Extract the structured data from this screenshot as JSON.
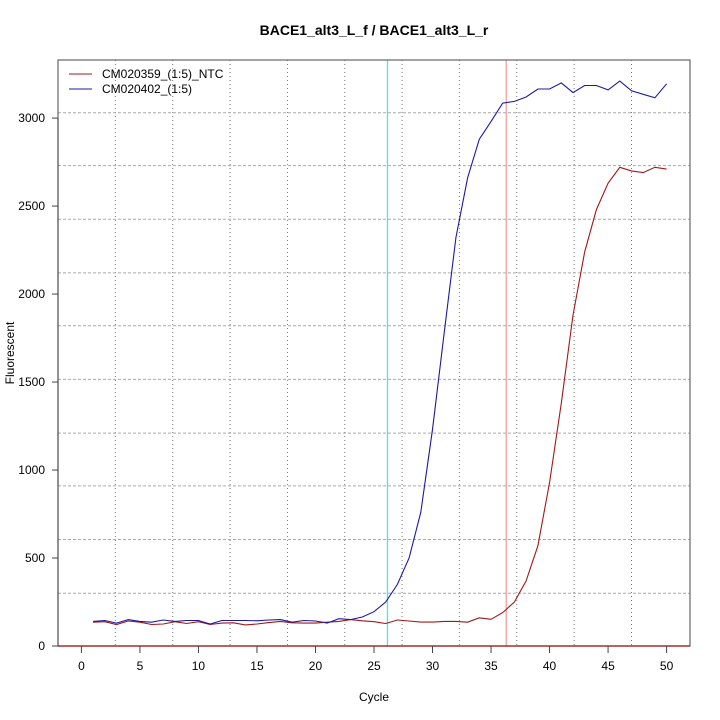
{
  "chart_data": {
    "type": "line",
    "title": "BACE1_alt3_L_f / BACE1_alt3_L_r",
    "xlabel": "Cycle",
    "ylabel": "Fluorescent",
    "xlim": [
      -2,
      52
    ],
    "ylim": [
      0,
      3330
    ],
    "xticks": [
      0,
      5,
      10,
      15,
      20,
      25,
      30,
      35,
      40,
      45,
      50
    ],
    "yticks": [
      0,
      500,
      1000,
      1500,
      2000,
      2500,
      3000
    ],
    "grid": true,
    "grid_x": [
      2.9,
      7.8,
      12.7,
      17.6,
      22.5,
      27.4,
      32.3,
      37.2,
      42.1,
      47.0
    ],
    "grid_y": [
      300,
      605,
      910,
      1210,
      1515,
      1820,
      2120,
      2425,
      2730,
      3030
    ],
    "legend_position": "top-left",
    "vertical_markers": [
      {
        "x": 26.15,
        "color": "#40e8f0"
      },
      {
        "x": 36.3,
        "color": "#f0a0a0"
      }
    ],
    "series": [
      {
        "name": "CM020359_(1:5)_NTC",
        "color": "#a01818",
        "x": [
          1,
          2,
          3,
          4,
          5,
          6,
          7,
          8,
          9,
          10,
          11,
          12,
          13,
          14,
          15,
          16,
          17,
          18,
          19,
          20,
          21,
          22,
          23,
          24,
          25,
          26,
          27,
          28,
          29,
          30,
          31,
          32,
          33,
          34,
          35,
          36,
          37,
          38,
          39,
          40,
          41,
          42,
          43,
          44,
          45,
          46,
          47,
          48,
          49,
          50
        ],
        "values": [
          135,
          138,
          122,
          142,
          135,
          122,
          125,
          138,
          128,
          138,
          122,
          130,
          132,
          120,
          125,
          133,
          140,
          132,
          130,
          130,
          135,
          140,
          150,
          143,
          138,
          128,
          148,
          142,
          136,
          136,
          140,
          140,
          135,
          160,
          152,
          190,
          250,
          370,
          570,
          930,
          1380,
          1880,
          2240,
          2480,
          2630,
          2720,
          2700,
          2690,
          2720,
          2710
        ]
      },
      {
        "name": "CM020402_(1:5)",
        "color": "#1a1aa0",
        "x": [
          1,
          2,
          3,
          4,
          5,
          6,
          7,
          8,
          9,
          10,
          11,
          12,
          13,
          14,
          15,
          16,
          17,
          18,
          19,
          20,
          21,
          22,
          23,
          24,
          25,
          26,
          27,
          28,
          29,
          30,
          31,
          32,
          33,
          34,
          35,
          36,
          37,
          38,
          39,
          40,
          41,
          42,
          43,
          44,
          45,
          46,
          47,
          48,
          49,
          50
        ],
        "values": [
          140,
          145,
          130,
          150,
          140,
          135,
          148,
          140,
          145,
          145,
          125,
          145,
          145,
          145,
          143,
          148,
          150,
          135,
          145,
          142,
          130,
          155,
          150,
          165,
          195,
          250,
          350,
          500,
          760,
          1230,
          1780,
          2320,
          2660,
          2880,
          2980,
          3085,
          3095,
          3120,
          3165,
          3165,
          3200,
          3145,
          3185,
          3185,
          3160,
          3210,
          3155,
          3135,
          3115,
          3195
        ]
      }
    ]
  }
}
